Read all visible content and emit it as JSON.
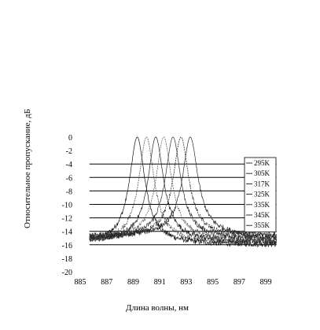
{
  "chart_data": {
    "type": "line",
    "title": "",
    "xlabel": "Длина волны,  нм",
    "ylabel": "Относительное пропускание,  дБ",
    "xlim": [
      885,
      900
    ],
    "ylim": [
      -20,
      0
    ],
    "x_ticks": [
      885,
      887,
      889,
      891,
      893,
      895,
      897,
      899
    ],
    "x_tick_labels": [
      "885",
      "887",
      "889",
      "891",
      "893",
      "895",
      "897",
      "899"
    ],
    "y_ticks": [
      0,
      -2,
      -4,
      -6,
      -8,
      -10,
      -12,
      -14,
      -16,
      -18,
      -20
    ],
    "y_tick_labels": [
      "0",
      "-2",
      "-4",
      "-6",
      "-8",
      "-10",
      "-12",
      "-14",
      "-16",
      "-18",
      "-20"
    ],
    "horizontal_gridlines": [
      -4,
      -6,
      -8,
      -10,
      -12,
      -14,
      -16
    ],
    "legend_position": "right",
    "series": [
      {
        "name": "295K",
        "peak_x": 889.3,
        "peak_y": 0,
        "baseline_y": -16
      },
      {
        "name": "305K",
        "peak_x": 890.0,
        "peak_y": 0,
        "baseline_y": -15.8
      },
      {
        "name": "317K",
        "peak_x": 890.7,
        "peak_y": 0,
        "baseline_y": -15.6
      },
      {
        "name": "325K",
        "peak_x": 891.3,
        "peak_y": 0,
        "baseline_y": -15.4
      },
      {
        "name": "335K",
        "peak_x": 892.0,
        "peak_y": 0,
        "baseline_y": -15.2
      },
      {
        "name": "345K",
        "peak_x": 892.6,
        "peak_y": 0,
        "baseline_y": -15.0
      },
      {
        "name": "355K",
        "peak_x": 893.3,
        "peak_y": 0,
        "baseline_y": -14.8
      }
    ]
  }
}
